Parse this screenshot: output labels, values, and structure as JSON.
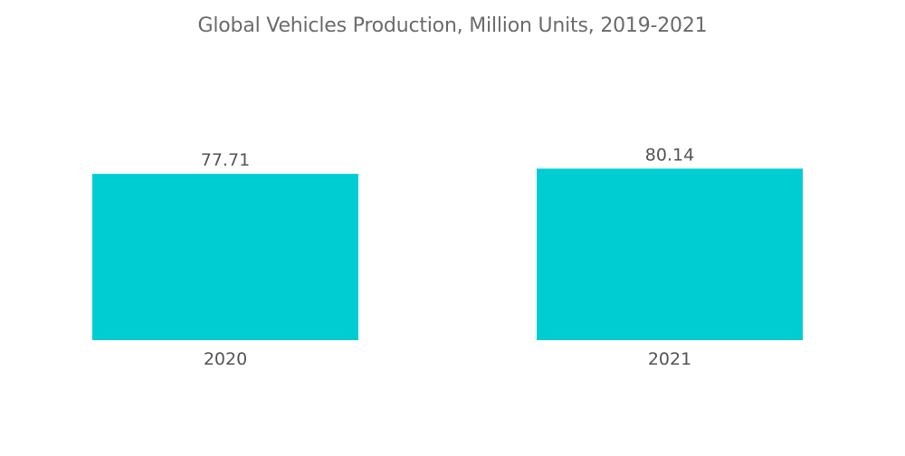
{
  "chart_data": {
    "type": "bar",
    "title": "Global Vehicles Production, Million Units, 2019-2021",
    "categories": [
      "2020",
      "2021"
    ],
    "values": [
      77.71,
      80.14
    ],
    "value_labels": [
      "77.71",
      "80.14"
    ],
    "xlabel": "",
    "ylabel": "",
    "ylim": [
      0,
      100
    ],
    "grid": false,
    "legend": "none",
    "bar_color": "#00CDD1"
  }
}
